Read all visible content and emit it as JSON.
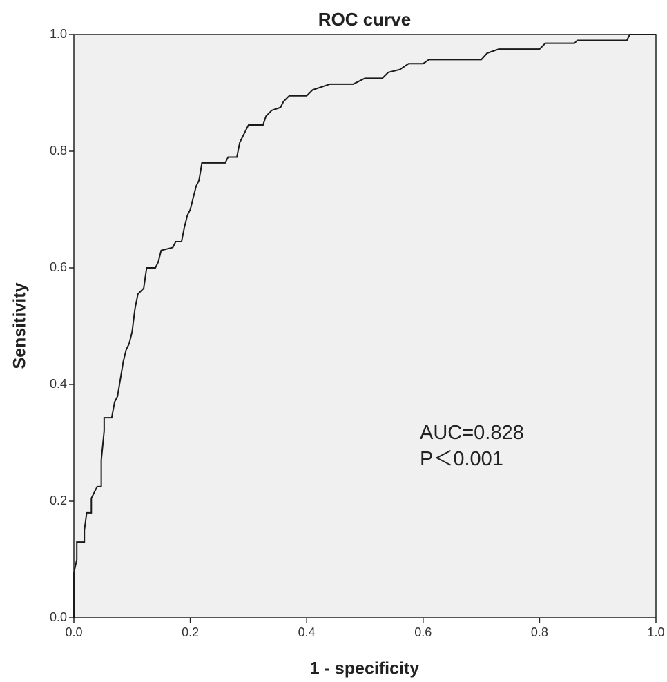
{
  "chart_data": {
    "type": "line",
    "title": "ROC curve",
    "xlabel": "1 - specificity",
    "ylabel": "Sensitivity",
    "annotations": [
      "AUC=0.828",
      "P＜0.001"
    ],
    "xlim": [
      0,
      1
    ],
    "ylim": [
      0,
      1
    ],
    "xticks": [
      {
        "value": 0,
        "label": "0.0"
      },
      0.2,
      0.4,
      0.6,
      0.8,
      {
        "value": 1,
        "label": "1.0"
      }
    ],
    "yticks": [
      {
        "value": 0,
        "label": "0.0"
      },
      0.2,
      0.4,
      0.6,
      0.8,
      {
        "value": 1,
        "label": "1.0"
      }
    ],
    "x": [
      0,
      0,
      0.005,
      0.005,
      0.018,
      0.018,
      0.022,
      0.03,
      0.03,
      0.035,
      0.04,
      0.047,
      0.047,
      0.052,
      0.052,
      0.065,
      0.07,
      0.075,
      0.08,
      0.085,
      0.09,
      0.095,
      0.1,
      0.105,
      0.11,
      0.12,
      0.125,
      0.14,
      0.145,
      0.15,
      0.17,
      0.175,
      0.185,
      0.19,
      0.195,
      0.2,
      0.205,
      0.21,
      0.215,
      0.22,
      0.26,
      0.265,
      0.28,
      0.285,
      0.295,
      0.3,
      0.325,
      0.33,
      0.34,
      0.355,
      0.36,
      0.37,
      0.4,
      0.41,
      0.44,
      0.48,
      0.5,
      0.53,
      0.54,
      0.56,
      0.575,
      0.6,
      0.61,
      0.7,
      0.71,
      0.73,
      0.8,
      0.81,
      0.86,
      0.865,
      0.95,
      0.955,
      1
    ],
    "series": [
      {
        "color": "#1a1a1a",
        "values": [
          0,
          0.077,
          0.1,
          0.13,
          0.13,
          0.15,
          0.18,
          0.18,
          0.205,
          0.215,
          0.225,
          0.225,
          0.27,
          0.32,
          0.343,
          0.343,
          0.37,
          0.38,
          0.41,
          0.44,
          0.46,
          0.47,
          0.49,
          0.53,
          0.555,
          0.565,
          0.6,
          0.6,
          0.61,
          0.63,
          0.635,
          0.645,
          0.645,
          0.67,
          0.69,
          0.7,
          0.72,
          0.74,
          0.75,
          0.78,
          0.78,
          0.79,
          0.79,
          0.815,
          0.835,
          0.845,
          0.845,
          0.86,
          0.87,
          0.875,
          0.885,
          0.895,
          0.895,
          0.905,
          0.915,
          0.915,
          0.925,
          0.925,
          0.935,
          0.94,
          0.95,
          0.95,
          0.957,
          0.957,
          0.968,
          0.975,
          0.975,
          0.985,
          0.985,
          0.99,
          0.99,
          1,
          1
        ]
      }
    ],
    "plot_background": "#f0f0f0"
  }
}
